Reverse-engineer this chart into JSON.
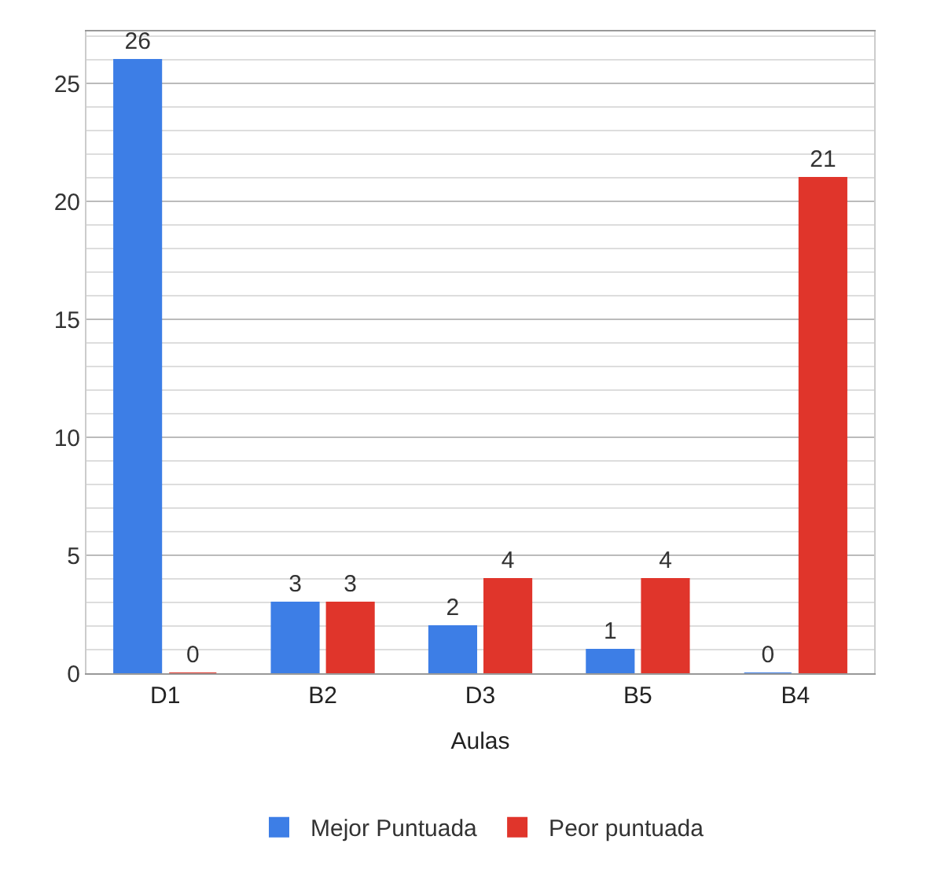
{
  "chart_data": {
    "type": "bar",
    "xlabel": "Aulas",
    "categories": [
      "D1",
      "B2",
      "D3",
      "B5",
      "B4"
    ],
    "series": [
      {
        "name": "Mejor Puntuada",
        "color": "#3d7ee6",
        "values": [
          26,
          3,
          2,
          1,
          0
        ]
      },
      {
        "name": "Peor puntuada",
        "color": "#e0352b",
        "values": [
          0,
          3,
          4,
          4,
          21
        ]
      }
    ],
    "ylim": [
      0,
      27.2
    ],
    "yticks": [
      0,
      5,
      10,
      15,
      20,
      25
    ],
    "grid": "y",
    "legend": "bottom",
    "data_labels": true
  }
}
